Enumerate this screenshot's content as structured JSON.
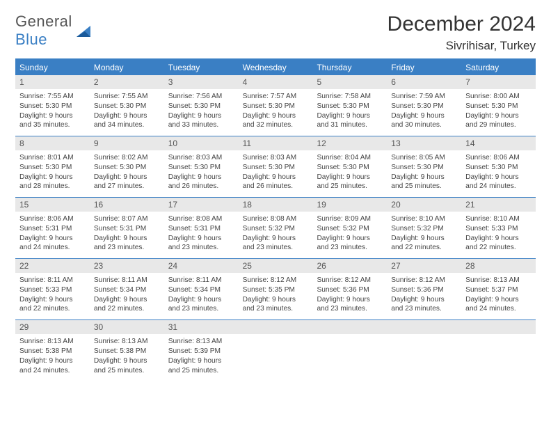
{
  "brand": {
    "top": "General",
    "bottom": "Blue"
  },
  "title": {
    "month": "December 2024",
    "location": "Sivrihisar, Turkey"
  },
  "colors": {
    "accent": "#3a7fc4",
    "header_bg": "#3a7fc4",
    "header_text": "#ffffff",
    "daynum_bg": "#e8e8e8",
    "body_text": "#444",
    "page_bg": "#ffffff"
  },
  "daynames": [
    "Sunday",
    "Monday",
    "Tuesday",
    "Wednesday",
    "Thursday",
    "Friday",
    "Saturday"
  ],
  "days": [
    {
      "n": "1",
      "sr": "7:55 AM",
      "ss": "5:30 PM",
      "dl": "9 hours and 35 minutes."
    },
    {
      "n": "2",
      "sr": "7:55 AM",
      "ss": "5:30 PM",
      "dl": "9 hours and 34 minutes."
    },
    {
      "n": "3",
      "sr": "7:56 AM",
      "ss": "5:30 PM",
      "dl": "9 hours and 33 minutes."
    },
    {
      "n": "4",
      "sr": "7:57 AM",
      "ss": "5:30 PM",
      "dl": "9 hours and 32 minutes."
    },
    {
      "n": "5",
      "sr": "7:58 AM",
      "ss": "5:30 PM",
      "dl": "9 hours and 31 minutes."
    },
    {
      "n": "6",
      "sr": "7:59 AM",
      "ss": "5:30 PM",
      "dl": "9 hours and 30 minutes."
    },
    {
      "n": "7",
      "sr": "8:00 AM",
      "ss": "5:30 PM",
      "dl": "9 hours and 29 minutes."
    },
    {
      "n": "8",
      "sr": "8:01 AM",
      "ss": "5:30 PM",
      "dl": "9 hours and 28 minutes."
    },
    {
      "n": "9",
      "sr": "8:02 AM",
      "ss": "5:30 PM",
      "dl": "9 hours and 27 minutes."
    },
    {
      "n": "10",
      "sr": "8:03 AM",
      "ss": "5:30 PM",
      "dl": "9 hours and 26 minutes."
    },
    {
      "n": "11",
      "sr": "8:03 AM",
      "ss": "5:30 PM",
      "dl": "9 hours and 26 minutes."
    },
    {
      "n": "12",
      "sr": "8:04 AM",
      "ss": "5:30 PM",
      "dl": "9 hours and 25 minutes."
    },
    {
      "n": "13",
      "sr": "8:05 AM",
      "ss": "5:30 PM",
      "dl": "9 hours and 25 minutes."
    },
    {
      "n": "14",
      "sr": "8:06 AM",
      "ss": "5:30 PM",
      "dl": "9 hours and 24 minutes."
    },
    {
      "n": "15",
      "sr": "8:06 AM",
      "ss": "5:31 PM",
      "dl": "9 hours and 24 minutes."
    },
    {
      "n": "16",
      "sr": "8:07 AM",
      "ss": "5:31 PM",
      "dl": "9 hours and 23 minutes."
    },
    {
      "n": "17",
      "sr": "8:08 AM",
      "ss": "5:31 PM",
      "dl": "9 hours and 23 minutes."
    },
    {
      "n": "18",
      "sr": "8:08 AM",
      "ss": "5:32 PM",
      "dl": "9 hours and 23 minutes."
    },
    {
      "n": "19",
      "sr": "8:09 AM",
      "ss": "5:32 PM",
      "dl": "9 hours and 23 minutes."
    },
    {
      "n": "20",
      "sr": "8:10 AM",
      "ss": "5:32 PM",
      "dl": "9 hours and 22 minutes."
    },
    {
      "n": "21",
      "sr": "8:10 AM",
      "ss": "5:33 PM",
      "dl": "9 hours and 22 minutes."
    },
    {
      "n": "22",
      "sr": "8:11 AM",
      "ss": "5:33 PM",
      "dl": "9 hours and 22 minutes."
    },
    {
      "n": "23",
      "sr": "8:11 AM",
      "ss": "5:34 PM",
      "dl": "9 hours and 22 minutes."
    },
    {
      "n": "24",
      "sr": "8:11 AM",
      "ss": "5:34 PM",
      "dl": "9 hours and 23 minutes."
    },
    {
      "n": "25",
      "sr": "8:12 AM",
      "ss": "5:35 PM",
      "dl": "9 hours and 23 minutes."
    },
    {
      "n": "26",
      "sr": "8:12 AM",
      "ss": "5:36 PM",
      "dl": "9 hours and 23 minutes."
    },
    {
      "n": "27",
      "sr": "8:12 AM",
      "ss": "5:36 PM",
      "dl": "9 hours and 23 minutes."
    },
    {
      "n": "28",
      "sr": "8:13 AM",
      "ss": "5:37 PM",
      "dl": "9 hours and 24 minutes."
    },
    {
      "n": "29",
      "sr": "8:13 AM",
      "ss": "5:38 PM",
      "dl": "9 hours and 24 minutes."
    },
    {
      "n": "30",
      "sr": "8:13 AM",
      "ss": "5:38 PM",
      "dl": "9 hours and 25 minutes."
    },
    {
      "n": "31",
      "sr": "8:13 AM",
      "ss": "5:39 PM",
      "dl": "9 hours and 25 minutes."
    }
  ],
  "labels": {
    "sunrise": "Sunrise:",
    "sunset": "Sunset:",
    "daylight": "Daylight:"
  }
}
